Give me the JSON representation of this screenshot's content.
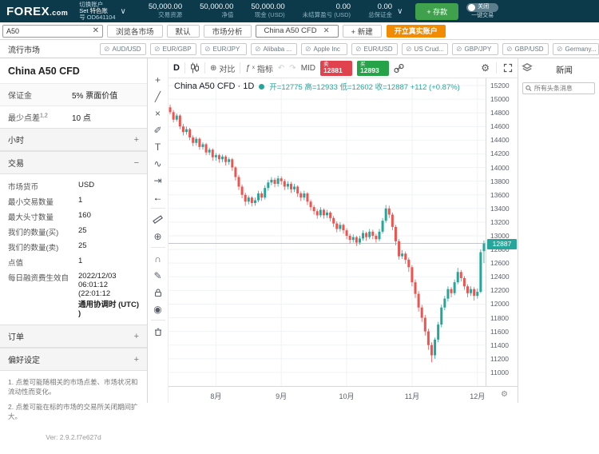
{
  "top_bar": {
    "logo": "FOREX",
    "logo_suffix": ".com",
    "account": {
      "switch_label": "切换账户",
      "name": "Set 特色账",
      "number": "号 OD641104"
    },
    "stats": [
      {
        "value": "50,000.00",
        "label": "交易资源"
      },
      {
        "value": "50,000.00",
        "label": "净值"
      },
      {
        "value": "50,000.00",
        "label": "现金 (USD)"
      },
      {
        "value": "0.00",
        "label": "未结算盈亏 (USD)"
      },
      {
        "value": "0.00",
        "label": "总保证金"
      }
    ],
    "deposit_button": "+ 存款",
    "one_click": {
      "state": "关闭",
      "label": "一键交易"
    }
  },
  "tab_bar": {
    "search_value": "A50",
    "tabs": [
      "浏览各市场",
      "默认",
      "市场分析"
    ],
    "active_tab": "China A50 CFD",
    "new_tab": "+ 新建",
    "open_account_button": "开立真实账户"
  },
  "tiles_header": "流行市场",
  "tiles": [
    "AUD/USD",
    "EUR/GBP",
    "EUR/JPY",
    "Alibaba ...",
    "Apple Inc",
    "EUR/USD",
    "US Crud...",
    "GBP/JPY",
    "GBP/USD",
    "Germany..."
  ],
  "left_panel": {
    "title": "China A50 CFD",
    "info_rows": [
      {
        "label": "保证金",
        "sup": "",
        "value": "5% 票面价值"
      },
      {
        "label": "最少点差",
        "sup": "1,2",
        "value": "10 点"
      }
    ],
    "sections": [
      {
        "label": "小时",
        "sign": "+"
      },
      {
        "label": "交易",
        "sign": "−"
      },
      {
        "label": "订单",
        "sign": "+"
      },
      {
        "label": "偏好设定",
        "sign": "+"
      }
    ],
    "trade_rows": [
      {
        "label": "市场货币",
        "value": "USD"
      },
      {
        "label": "最小交易数量",
        "value": "1"
      },
      {
        "label": "最大头寸数量",
        "value": "160"
      },
      {
        "label": "我们的数量(买)",
        "value": "25"
      },
      {
        "label": "我们的数量(卖)",
        "value": "25"
      },
      {
        "label": "点值",
        "value": "1"
      },
      {
        "label": "每日融资费生效自",
        "value": "2022/12/03 06:01:12 (22:01:12",
        "value_bold": "通用协调时 (UTC) )"
      }
    ],
    "footnotes": [
      "1. 点差可能随相关的市场点差、市场状况和流动性而变化。",
      "2. 点差可能在标的市场的交易所关闭期间扩大。"
    ],
    "version": "Ver: 2.9.2.f7e627d"
  },
  "drawing_toolbar": [
    "crosshair",
    "trend-line",
    "fib-tools",
    "brush",
    "text-tool",
    "pattern-tool",
    "forecast-tool",
    "arrow-left",
    "|",
    "ruler",
    "zoom-in",
    "|",
    "magnet",
    "drawing-sync",
    "lock",
    "eye",
    "|",
    "trash"
  ],
  "chart_toolbar": {
    "timeframe": "D",
    "compare": "对比",
    "indicators_fx": "ƒ",
    "indicators": "指标",
    "mid": "MID",
    "sell": {
      "label": "卖",
      "price": "12881"
    },
    "buy": {
      "label": "买",
      "price": "12893"
    }
  },
  "legend": {
    "symbol": "China A50 CFD",
    "interval": "1D",
    "ohlc": "开=12775 高=12933 低=12602 收=12887",
    "change": "+112 (+0.87%)"
  },
  "right_panel": {
    "title": "新闻",
    "search_placeholder": "所有头条消息"
  },
  "chart_data": {
    "type": "candlestick",
    "title": "China A50 CFD · 1D",
    "interval": "1D",
    "price_range": [
      10800,
      15305
    ],
    "y_ticks": [
      15200,
      15000,
      14800,
      14600,
      14400,
      14200,
      14000,
      13800,
      13600,
      13400,
      13200,
      13000,
      12800,
      12600,
      12400,
      12200,
      12000,
      11800,
      11600,
      11400,
      11200,
      11000
    ],
    "current_price": 12887,
    "current_price_label": "12887",
    "last_bar": {
      "open": 12775,
      "high": 12933,
      "low": 12602,
      "close": 12887,
      "change": "+112 (+0.87%)"
    },
    "x_labels": [
      {
        "label": "8月",
        "index": 14
      },
      {
        "label": "9月",
        "index": 34
      },
      {
        "label": "10月",
        "index": 54
      },
      {
        "label": "11月",
        "index": 74
      },
      {
        "label": "12月",
        "index": 94
      }
    ],
    "colors": {
      "up": "#26a69a",
      "down": "#ef5350",
      "grid": "#f0f2f5",
      "price_line": "#b0b3ba",
      "tag": "#26a69a"
    },
    "candles": [
      [
        14880,
        14920,
        14780,
        14810
      ],
      [
        14810,
        14840,
        14660,
        14700
      ],
      [
        14700,
        14790,
        14670,
        14760
      ],
      [
        14760,
        14780,
        14560,
        14600
      ],
      [
        14600,
        14640,
        14470,
        14520
      ],
      [
        14520,
        14600,
        14480,
        14560
      ],
      [
        14560,
        14580,
        14400,
        14440
      ],
      [
        14440,
        14470,
        14310,
        14360
      ],
      [
        14360,
        14450,
        14320,
        14420
      ],
      [
        14420,
        14440,
        14260,
        14300
      ],
      [
        14300,
        14370,
        14260,
        14340
      ],
      [
        14340,
        14360,
        14180,
        14220
      ],
      [
        14220,
        14290,
        14180,
        14260
      ],
      [
        14260,
        14280,
        14100,
        14150
      ],
      [
        14150,
        14210,
        14100,
        14180
      ],
      [
        14180,
        14200,
        14070,
        14120
      ],
      [
        14120,
        14190,
        14080,
        14160
      ],
      [
        14160,
        14180,
        14030,
        14080
      ],
      [
        14080,
        14150,
        14040,
        14120
      ],
      [
        14120,
        14140,
        13950,
        14000
      ],
      [
        14000,
        14020,
        13810,
        13860
      ],
      [
        13860,
        13890,
        13670,
        13720
      ],
      [
        13720,
        13750,
        13550,
        13600
      ],
      [
        13600,
        13630,
        13440,
        13500
      ],
      [
        13500,
        13590,
        13460,
        13560
      ],
      [
        13560,
        13580,
        13430,
        13480
      ],
      [
        13480,
        13560,
        13440,
        13520
      ],
      [
        13520,
        13660,
        13490,
        13620
      ],
      [
        13620,
        13650,
        13510,
        13560
      ],
      [
        13560,
        13740,
        13530,
        13700
      ],
      [
        13700,
        13820,
        13660,
        13780
      ],
      [
        13780,
        13860,
        13740,
        13820
      ],
      [
        13820,
        13850,
        13710,
        13760
      ],
      [
        13760,
        13880,
        13720,
        13840
      ],
      [
        13840,
        13870,
        13750,
        13800
      ],
      [
        13800,
        13830,
        13670,
        13720
      ],
      [
        13720,
        13800,
        13680,
        13760
      ],
      [
        13760,
        13790,
        13630,
        13680
      ],
      [
        13680,
        13760,
        13640,
        13720
      ],
      [
        13720,
        13740,
        13570,
        13620
      ],
      [
        13620,
        13650,
        13510,
        13560
      ],
      [
        13560,
        13660,
        13520,
        13620
      ],
      [
        13620,
        13640,
        13450,
        13500
      ],
      [
        13500,
        13530,
        13370,
        13420
      ],
      [
        13420,
        13450,
        13310,
        13360
      ],
      [
        13360,
        13390,
        13250,
        13300
      ],
      [
        13300,
        13420,
        13270,
        13380
      ],
      [
        13380,
        13400,
        13250,
        13300
      ],
      [
        13300,
        13380,
        13260,
        13340
      ],
      [
        13340,
        13360,
        13210,
        13260
      ],
      [
        13260,
        13290,
        13130,
        13180
      ],
      [
        13180,
        13210,
        13050,
        13100
      ],
      [
        13100,
        13200,
        13060,
        13160
      ],
      [
        13160,
        13180,
        13030,
        13080
      ],
      [
        13080,
        13110,
        12950,
        13000
      ],
      [
        13000,
        13030,
        12890,
        12940
      ],
      [
        12940,
        13020,
        12900,
        12980
      ],
      [
        12980,
        13000,
        12850,
        12900
      ],
      [
        12900,
        13000,
        12870,
        12960
      ],
      [
        12960,
        13080,
        12930,
        13040
      ],
      [
        13040,
        13060,
        12930,
        12980
      ],
      [
        12980,
        13100,
        12950,
        13060
      ],
      [
        13060,
        13090,
        12950,
        13000
      ],
      [
        13000,
        13030,
        12900,
        12950
      ],
      [
        12950,
        13100,
        12920,
        13060
      ],
      [
        13060,
        13260,
        13030,
        13220
      ],
      [
        13220,
        13450,
        13190,
        13400
      ],
      [
        13400,
        13440,
        13260,
        13310
      ],
      [
        13310,
        13340,
        13080,
        13130
      ],
      [
        13130,
        13160,
        12860,
        12920
      ],
      [
        12920,
        12950,
        12650,
        12700
      ],
      [
        12700,
        12790,
        12660,
        12740
      ],
      [
        12740,
        12770,
        12590,
        12650
      ],
      [
        12650,
        12680,
        12470,
        12540
      ],
      [
        12540,
        12570,
        12260,
        12320
      ],
      [
        12320,
        12360,
        12090,
        12150
      ],
      [
        12150,
        12190,
        11890,
        11950
      ],
      [
        11950,
        11990,
        11740,
        11800
      ],
      [
        11800,
        11840,
        11540,
        11600
      ],
      [
        11600,
        11640,
        11330,
        11400
      ],
      [
        11400,
        11440,
        11150,
        11250
      ],
      [
        11250,
        11510,
        11200,
        11480
      ],
      [
        11480,
        11740,
        11440,
        11700
      ],
      [
        11700,
        11990,
        11660,
        11950
      ],
      [
        11950,
        12120,
        11910,
        12080
      ],
      [
        12080,
        12260,
        12040,
        12220
      ],
      [
        12220,
        12250,
        12100,
        12160
      ],
      [
        12160,
        12360,
        12130,
        12320
      ],
      [
        12320,
        12530,
        12290,
        12470
      ],
      [
        12470,
        12500,
        12330,
        12380
      ],
      [
        12380,
        12410,
        12210,
        12260
      ],
      [
        12260,
        12290,
        12100,
        12160
      ],
      [
        12160,
        12260,
        12120,
        12220
      ],
      [
        12220,
        12250,
        12050,
        12120
      ],
      [
        12120,
        12230,
        12080,
        12180
      ],
      [
        12180,
        12800,
        12160,
        12760
      ],
      [
        12775,
        12933,
        12602,
        12887
      ]
    ]
  }
}
